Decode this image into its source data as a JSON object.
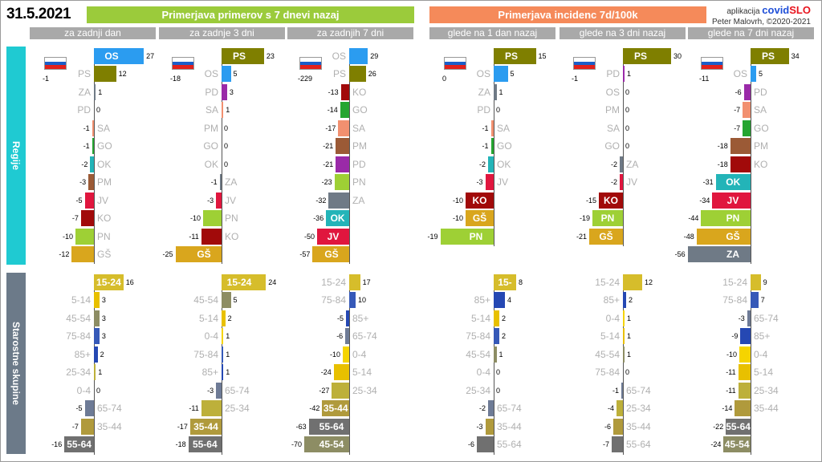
{
  "date": "31.5.2021",
  "banner_left": "Primerjava primerov s 7 dnevi nazaj",
  "banner_right": "Primerjava incidenc 7d/100k",
  "credits": {
    "line1": "aplikacija",
    "brand_a": "covid",
    "brand_b": "SLO",
    "line2": "Peter Malovrh, ©2020-2021"
  },
  "side_labels": {
    "regions": "Regije",
    "ages": "Starostne skupine"
  },
  "colors": {
    "OS": "#2b9cf0",
    "PS": "#7f7f00",
    "ZA": "#6f7a86",
    "PD": "#9a2aa8",
    "SA": "#f29070",
    "GO": "#25a530",
    "OK": "#23b4b8",
    "PM": "#9b5a36",
    "JV": "#e0163e",
    "KO": "#a10a0a",
    "PN": "#9ed035",
    "GŠ": "#d9a61d",
    "15-24": "#d6bd2b",
    "5-14": "#e8c000",
    "45-54": "#8d8d64",
    "75-84": "#3659b8",
    "85+": "#2548b3",
    "25-34": "#bdb03a",
    "0-4": "#f5d400",
    "65-74": "#6e7b96",
    "35-44": "#b09a3c",
    "55-64": "#707070",
    "banner_left": "#9bcb3b",
    "banner_right": "#f58a5a",
    "subhdr": "#a9a9a9",
    "side_regions": "#1fcad2",
    "side_ages": "#6c7a89"
  },
  "chart_data": [
    {
      "type": "bar",
      "group": "Primerjava primerov s 7 dnevi nazaj",
      "title": "za zadnji dan",
      "flag_value": "-1",
      "regions": {
        "labels": [
          "OS",
          "PS",
          "ZA",
          "PD",
          "SA",
          "GO",
          "OK",
          "PM",
          "JV",
          "KO",
          "PN",
          "GŠ"
        ],
        "values": [
          27,
          12,
          1,
          0,
          -1,
          -1,
          -2,
          -3,
          -5,
          -7,
          -10,
          -12
        ]
      },
      "ages": {
        "labels": [
          "15-24",
          "5-14",
          "45-54",
          "75-84",
          "85+",
          "25-34",
          "0-4",
          "65-74",
          "35-44",
          "55-64"
        ],
        "values": [
          16,
          3,
          3,
          3,
          2,
          1,
          0,
          -5,
          -7,
          -16
        ]
      }
    },
    {
      "type": "bar",
      "group": "Primerjava primerov s 7 dnevi nazaj",
      "title": "za zadnje 3 dni",
      "flag_value": "-18",
      "regions": {
        "labels": [
          "PS",
          "OS",
          "PD",
          "SA",
          "PM",
          "GO",
          "OK",
          "ZA",
          "JV",
          "PN",
          "KO",
          "GŠ"
        ],
        "values": [
          23,
          5,
          3,
          1,
          0,
          0,
          0,
          -1,
          -3,
          -10,
          -11,
          -25
        ]
      },
      "ages": {
        "labels": [
          "15-24",
          "45-54",
          "5-14",
          "0-4",
          "75-84",
          "85+",
          "65-74",
          "25-34",
          "35-44",
          "55-64"
        ],
        "values": [
          24,
          5,
          2,
          1,
          1,
          1,
          -3,
          -11,
          -17,
          -18
        ]
      }
    },
    {
      "type": "bar",
      "group": "Primerjava primerov s 7 dnevi nazaj",
      "title": "za zadnjih 7 dni",
      "flag_value": "-229",
      "regions": {
        "labels": [
          "OS",
          "PS",
          "KO",
          "GO",
          "SA",
          "PM",
          "PD",
          "PN",
          "ZA",
          "OK",
          "JV",
          "GŠ"
        ],
        "values": [
          29,
          26,
          -13,
          -14,
          -17,
          -21,
          -21,
          -23,
          -32,
          -36,
          -50,
          -57
        ]
      },
      "ages": {
        "labels": [
          "15-24",
          "75-84",
          "85+",
          "65-74",
          "0-4",
          "5-14",
          "25-34",
          "35-44",
          "55-64",
          "45-54"
        ],
        "values": [
          17,
          10,
          -5,
          -6,
          -10,
          -24,
          -27,
          -42,
          -63,
          -70
        ]
      }
    },
    {
      "type": "bar",
      "group": "Primerjava incidenc 7d/100k",
      "title": "glede na 1 dan nazaj",
      "flag_value": "0",
      "regions": {
        "labels": [
          "PS",
          "OS",
          "ZA",
          "PD",
          "SA",
          "GO",
          "OK",
          "JV",
          "KO",
          "GŠ",
          "PN"
        ],
        "values": [
          15,
          5,
          1,
          0,
          -1,
          -1,
          -2,
          -3,
          -10,
          -10,
          -19
        ]
      },
      "ages": {
        "labels": [
          "15-24",
          "85+",
          "5-14",
          "75-84",
          "45-54",
          "0-4",
          "25-34",
          "65-74",
          "35-44",
          "55-64"
        ],
        "values": [
          8,
          4,
          2,
          2,
          1,
          0,
          0,
          -2,
          -3,
          -6
        ]
      }
    },
    {
      "type": "bar",
      "group": "Primerjava incidenc 7d/100k",
      "title": "glede na 3 dni nazaj",
      "flag_value": "-1",
      "regions": {
        "labels": [
          "PS",
          "PD",
          "OS",
          "PM",
          "SA",
          "GO",
          "ZA",
          "JV",
          "KO",
          "PN",
          "GŠ"
        ],
        "values": [
          30,
          1,
          0,
          0,
          0,
          0,
          -2,
          -2,
          -15,
          -19,
          -21
        ]
      },
      "ages": {
        "labels": [
          "15-24",
          "85+",
          "0-4",
          "5-14",
          "45-54",
          "75-84",
          "65-74",
          "25-34",
          "35-44",
          "55-64"
        ],
        "values": [
          12,
          2,
          1,
          1,
          1,
          0,
          -1,
          -4,
          -6,
          -7
        ]
      }
    },
    {
      "type": "bar",
      "group": "Primerjava incidenc 7d/100k",
      "title": "glede na 7 dni nazaj",
      "flag_value": "-11",
      "regions": {
        "labels": [
          "PS",
          "OS",
          "PD",
          "SA",
          "GO",
          "PM",
          "KO",
          "OK",
          "JV",
          "PN",
          "GŠ",
          "ZA"
        ],
        "values": [
          34,
          5,
          -6,
          -7,
          -7,
          -18,
          -18,
          -31,
          -34,
          -44,
          -48,
          -56
        ]
      },
      "ages": {
        "labels": [
          "15-24",
          "75-84",
          "65-74",
          "85+",
          "0-4",
          "5-14",
          "25-34",
          "35-44",
          "55-64",
          "45-54"
        ],
        "values": [
          9,
          7,
          -3,
          -9,
          -10,
          -11,
          -11,
          -14,
          -22,
          -24
        ]
      }
    }
  ]
}
